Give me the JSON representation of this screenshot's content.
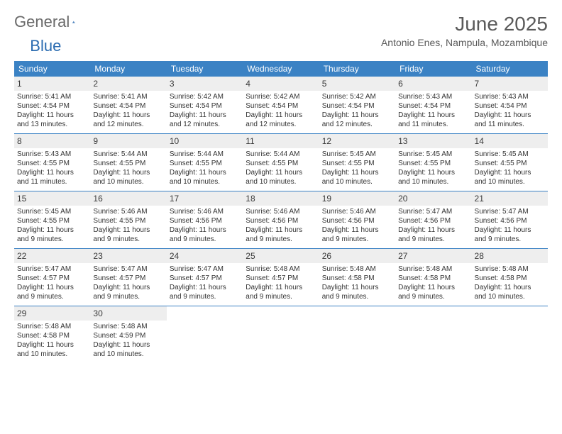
{
  "brand": {
    "part1": "General",
    "part2": "Blue"
  },
  "title": "June 2025",
  "location": "Antonio Enes, Nampula, Mozambique",
  "colors": {
    "accent": "#3b82c4",
    "row_bg": "#eeeeee",
    "text_dark": "#4a4a4a"
  },
  "dow": [
    "Sunday",
    "Monday",
    "Tuesday",
    "Wednesday",
    "Thursday",
    "Friday",
    "Saturday"
  ],
  "weeks": [
    [
      {
        "n": "1",
        "rise": "5:41 AM",
        "set": "4:54 PM",
        "dl": "11 hours and 13 minutes."
      },
      {
        "n": "2",
        "rise": "5:41 AM",
        "set": "4:54 PM",
        "dl": "11 hours and 12 minutes."
      },
      {
        "n": "3",
        "rise": "5:42 AM",
        "set": "4:54 PM",
        "dl": "11 hours and 12 minutes."
      },
      {
        "n": "4",
        "rise": "5:42 AM",
        "set": "4:54 PM",
        "dl": "11 hours and 12 minutes."
      },
      {
        "n": "5",
        "rise": "5:42 AM",
        "set": "4:54 PM",
        "dl": "11 hours and 12 minutes."
      },
      {
        "n": "6",
        "rise": "5:43 AM",
        "set": "4:54 PM",
        "dl": "11 hours and 11 minutes."
      },
      {
        "n": "7",
        "rise": "5:43 AM",
        "set": "4:54 PM",
        "dl": "11 hours and 11 minutes."
      }
    ],
    [
      {
        "n": "8",
        "rise": "5:43 AM",
        "set": "4:55 PM",
        "dl": "11 hours and 11 minutes."
      },
      {
        "n": "9",
        "rise": "5:44 AM",
        "set": "4:55 PM",
        "dl": "11 hours and 10 minutes."
      },
      {
        "n": "10",
        "rise": "5:44 AM",
        "set": "4:55 PM",
        "dl": "11 hours and 10 minutes."
      },
      {
        "n": "11",
        "rise": "5:44 AM",
        "set": "4:55 PM",
        "dl": "11 hours and 10 minutes."
      },
      {
        "n": "12",
        "rise": "5:45 AM",
        "set": "4:55 PM",
        "dl": "11 hours and 10 minutes."
      },
      {
        "n": "13",
        "rise": "5:45 AM",
        "set": "4:55 PM",
        "dl": "11 hours and 10 minutes."
      },
      {
        "n": "14",
        "rise": "5:45 AM",
        "set": "4:55 PM",
        "dl": "11 hours and 10 minutes."
      }
    ],
    [
      {
        "n": "15",
        "rise": "5:45 AM",
        "set": "4:55 PM",
        "dl": "11 hours and 9 minutes."
      },
      {
        "n": "16",
        "rise": "5:46 AM",
        "set": "4:55 PM",
        "dl": "11 hours and 9 minutes."
      },
      {
        "n": "17",
        "rise": "5:46 AM",
        "set": "4:56 PM",
        "dl": "11 hours and 9 minutes."
      },
      {
        "n": "18",
        "rise": "5:46 AM",
        "set": "4:56 PM",
        "dl": "11 hours and 9 minutes."
      },
      {
        "n": "19",
        "rise": "5:46 AM",
        "set": "4:56 PM",
        "dl": "11 hours and 9 minutes."
      },
      {
        "n": "20",
        "rise": "5:47 AM",
        "set": "4:56 PM",
        "dl": "11 hours and 9 minutes."
      },
      {
        "n": "21",
        "rise": "5:47 AM",
        "set": "4:56 PM",
        "dl": "11 hours and 9 minutes."
      }
    ],
    [
      {
        "n": "22",
        "rise": "5:47 AM",
        "set": "4:57 PM",
        "dl": "11 hours and 9 minutes."
      },
      {
        "n": "23",
        "rise": "5:47 AM",
        "set": "4:57 PM",
        "dl": "11 hours and 9 minutes."
      },
      {
        "n": "24",
        "rise": "5:47 AM",
        "set": "4:57 PM",
        "dl": "11 hours and 9 minutes."
      },
      {
        "n": "25",
        "rise": "5:48 AM",
        "set": "4:57 PM",
        "dl": "11 hours and 9 minutes."
      },
      {
        "n": "26",
        "rise": "5:48 AM",
        "set": "4:58 PM",
        "dl": "11 hours and 9 minutes."
      },
      {
        "n": "27",
        "rise": "5:48 AM",
        "set": "4:58 PM",
        "dl": "11 hours and 9 minutes."
      },
      {
        "n": "28",
        "rise": "5:48 AM",
        "set": "4:58 PM",
        "dl": "11 hours and 10 minutes."
      }
    ],
    [
      {
        "n": "29",
        "rise": "5:48 AM",
        "set": "4:58 PM",
        "dl": "11 hours and 10 minutes."
      },
      {
        "n": "30",
        "rise": "5:48 AM",
        "set": "4:59 PM",
        "dl": "11 hours and 10 minutes."
      },
      {
        "n": "",
        "rise": "",
        "set": "",
        "dl": ""
      },
      {
        "n": "",
        "rise": "",
        "set": "",
        "dl": ""
      },
      {
        "n": "",
        "rise": "",
        "set": "",
        "dl": ""
      },
      {
        "n": "",
        "rise": "",
        "set": "",
        "dl": ""
      },
      {
        "n": "",
        "rise": "",
        "set": "",
        "dl": ""
      }
    ]
  ],
  "labels": {
    "sunrise": "Sunrise: ",
    "sunset": "Sunset: ",
    "daylight": "Daylight: "
  }
}
